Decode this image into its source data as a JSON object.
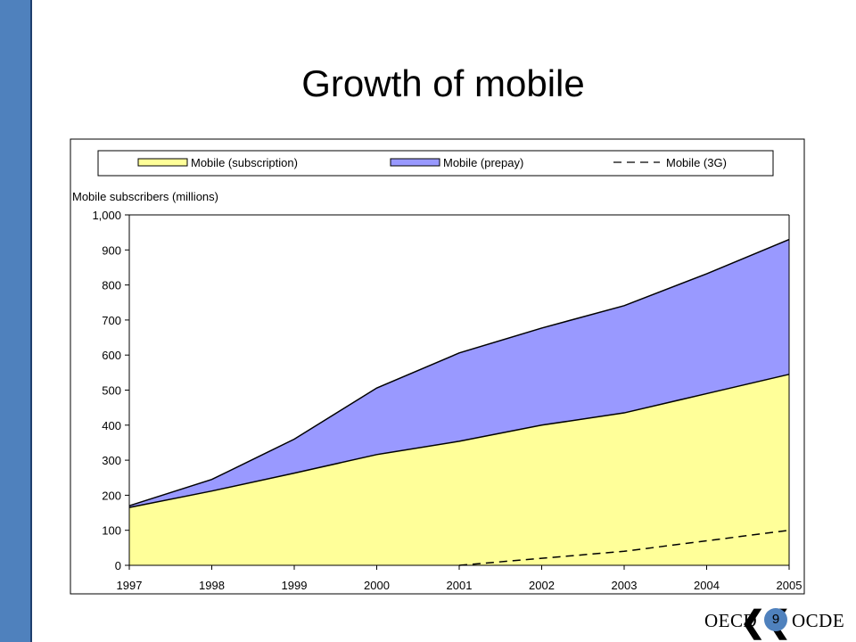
{
  "slide": {
    "title": "Growth of mobile",
    "page_number": "9",
    "logo_left": "OECD",
    "logo_right": "OCDE",
    "accent_color": "#4f81bd"
  },
  "chart_data": {
    "type": "area",
    "ylabel": "Mobile subscribers (millions)",
    "x": [
      "1997",
      "1998",
      "1999",
      "2000",
      "2001",
      "2002",
      "2003",
      "2004",
      "2005"
    ],
    "ylim": [
      0,
      1000
    ],
    "yticks": [
      0,
      100,
      200,
      300,
      400,
      500,
      600,
      700,
      800,
      900,
      1000
    ],
    "ytick_labels": [
      "0",
      "100",
      "200",
      "300",
      "400",
      "500",
      "600",
      "700",
      "800",
      "900",
      "1,000"
    ],
    "stacked": true,
    "grid": false,
    "legend_position": "top",
    "series": [
      {
        "name": "Mobile (subscription)",
        "kind": "area",
        "color": "#ffff99",
        "values": [
          165,
          212,
          263,
          316,
          354,
          400,
          435,
          490,
          545
        ]
      },
      {
        "name": "Mobile (prepay)",
        "kind": "area",
        "color": "#9999ff",
        "values": [
          5,
          33,
          97,
          190,
          252,
          277,
          306,
          342,
          385
        ]
      },
      {
        "name": "Mobile (3G)",
        "kind": "dashed-line",
        "color": "#000000",
        "values": [
          null,
          null,
          null,
          null,
          0,
          20,
          40,
          70,
          100
        ]
      }
    ]
  }
}
